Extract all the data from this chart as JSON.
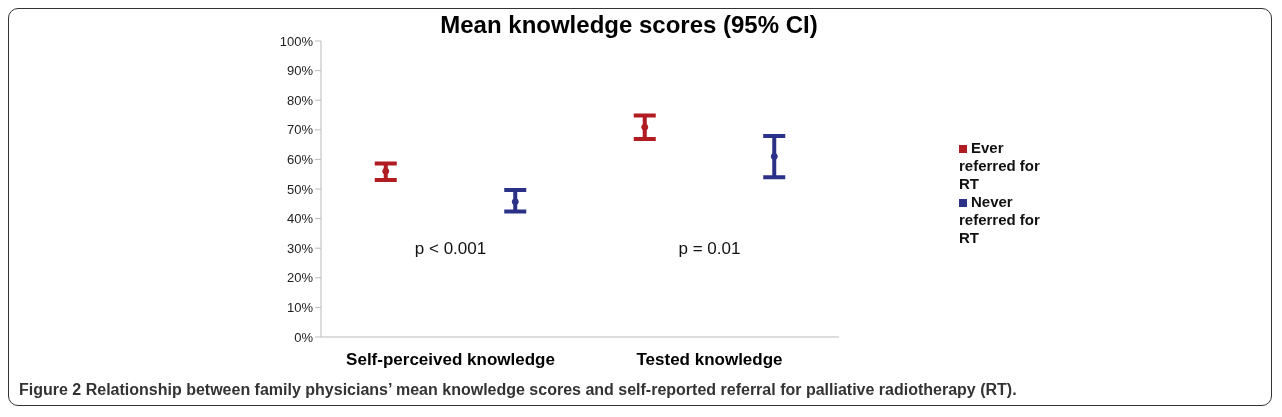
{
  "chart_data": {
    "type": "scatter",
    "title": "Mean knowledge scores (95% CI)",
    "categories": [
      "Self-perceived knowledge",
      "Tested knowledge"
    ],
    "series": [
      {
        "name": "Ever referred for RT",
        "color": "#b01c22",
        "values": [
          56,
          70.9
        ],
        "errors": [
          [
            53,
            58.6
          ],
          [
            66.9,
            74.8
          ]
        ]
      },
      {
        "name": "Never referred for RT",
        "color": "#2b3187",
        "values": [
          45.7,
          61
        ],
        "errors": [
          [
            42.4,
            49.7
          ],
          [
            54,
            67.9
          ]
        ]
      }
    ],
    "ylim": [
      0,
      100
    ],
    "yticks": [
      {
        "value": 0,
        "label": "0%"
      },
      {
        "value": 10,
        "label": "10%"
      },
      {
        "value": 20,
        "label": "20%"
      },
      {
        "value": 30,
        "label": "30%"
      },
      {
        "value": 40,
        "label": "40%"
      },
      {
        "value": 50,
        "label": "50%"
      },
      {
        "value": 60,
        "label": "60%"
      },
      {
        "value": 70,
        "label": "70%"
      },
      {
        "value": 80,
        "label": "80%"
      },
      {
        "value": 90,
        "label": "90%"
      },
      {
        "value": 100,
        "label": "100%"
      }
    ],
    "grid": false,
    "legend": "right",
    "marker": "circle",
    "annotations": [
      "p < 0.001",
      "p = 0.01",
      "Figure 2 Relationship between family physicians’ mean knowledge scores and self-reported referral for palliative radiotherapy (RT)."
    ]
  }
}
